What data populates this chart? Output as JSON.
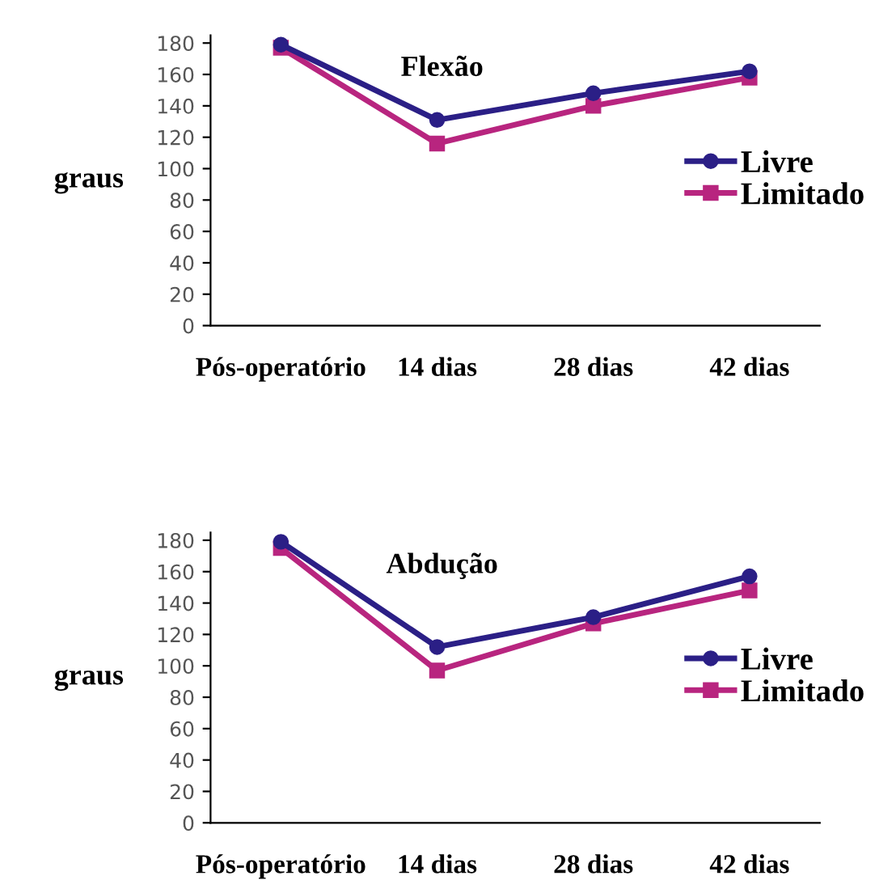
{
  "chart_data": [
    {
      "type": "line",
      "title": "Flexão",
      "ylabel": "graus",
      "categories": [
        "Pós-operatório",
        "14 dias",
        "28 dias",
        "42 dias"
      ],
      "ylim": [
        0,
        185
      ],
      "yticks": [
        0,
        20,
        40,
        60,
        80,
        100,
        120,
        140,
        160,
        180
      ],
      "grid": false,
      "legend": "right",
      "line_style": "solid",
      "series": [
        {
          "name": "Livre",
          "color": "#2b1f86",
          "marker": "circle",
          "values": [
            179,
            131,
            148,
            162
          ]
        },
        {
          "name": "Limitado",
          "color": "#b8257f",
          "marker": "square",
          "values": [
            177,
            116,
            140,
            158
          ]
        }
      ]
    },
    {
      "type": "line",
      "title": "Abdução",
      "ylabel": "graus",
      "categories": [
        "Pós-operatório",
        "14 dias",
        "28 dias",
        "42 dias"
      ],
      "ylim": [
        0,
        185
      ],
      "yticks": [
        0,
        20,
        40,
        60,
        80,
        100,
        120,
        140,
        160,
        180
      ],
      "grid": false,
      "legend": "right",
      "line_style": "solid",
      "series": [
        {
          "name": "Livre",
          "color": "#2b1f86",
          "marker": "circle",
          "values": [
            179,
            112,
            131,
            157
          ]
        },
        {
          "name": "Limitado",
          "color": "#b8257f",
          "marker": "square",
          "values": [
            175,
            97,
            127,
            148
          ]
        }
      ]
    }
  ]
}
